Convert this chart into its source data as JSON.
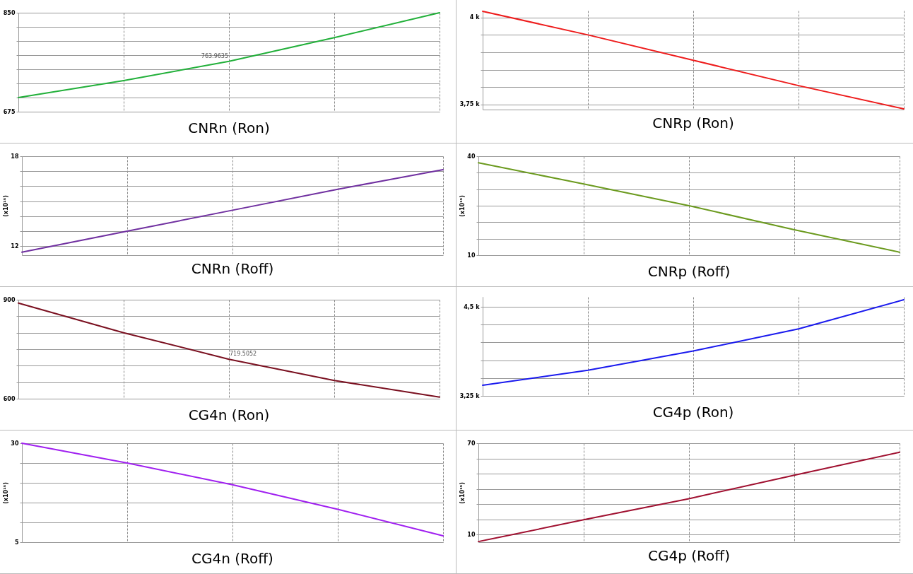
{
  "chart_data": [
    {
      "type": "line",
      "title": "CNRn (Ron)",
      "categories": [
        null,
        null,
        null,
        null,
        null
      ],
      "series": [
        {
          "color": "#22b03a",
          "values": [
            700,
            730,
            763.9635,
            806,
            850
          ]
        }
      ],
      "ylim": [
        675,
        850
      ],
      "yticks": [
        675,
        {
          "value": 700,
          "label": null
        },
        {
          "value": 725,
          "label": null
        },
        {
          "value": 750,
          "label": null
        },
        {
          "value": 775,
          "label": null
        },
        {
          "value": 800,
          "label": null
        },
        {
          "value": 825,
          "label": null
        },
        850
      ],
      "grid": true,
      "tick_labels": "y",
      "annotations": [
        {
          "text": "763.9635",
          "y": 763.9635
        }
      ]
    },
    {
      "type": "line",
      "title": "CNRp (Ron)",
      "categories": [
        null,
        null,
        null,
        null,
        null
      ],
      "series": [
        {
          "color": "#ee1c1c",
          "values": [
            4018,
            3950,
            3877,
            3804,
            3737
          ]
        }
      ],
      "ylim": [
        3735,
        4020
      ],
      "yticks": [
        {
          "value": 3750,
          "label": "3,75 k"
        },
        {
          "value": 3800,
          "label": null
        },
        {
          "value": 3850,
          "label": null
        },
        {
          "value": 3900,
          "label": null
        },
        {
          "value": 3950,
          "label": null
        },
        {
          "value": 4000,
          "label": "4 k"
        }
      ],
      "grid": true,
      "tick_labels": "y"
    },
    {
      "type": "line",
      "title": "CNRn (Roff)",
      "ylabel": "(x10¹⁵)",
      "categories": [
        null,
        null,
        null,
        null,
        null
      ],
      "series": [
        {
          "color": "#7030a0",
          "values": [
            11.6,
            13,
            14.4,
            15.8,
            17.1
          ]
        }
      ],
      "ylim": [
        11.4,
        18
      ],
      "yticks": [
        12,
        {
          "value": 13,
          "label": null
        },
        {
          "value": 14,
          "label": null
        },
        {
          "value": 15,
          "label": null
        },
        {
          "value": 16,
          "label": null
        },
        {
          "value": 17,
          "label": null
        },
        18
      ],
      "grid": true,
      "tick_labels": "y"
    },
    {
      "type": "line",
      "title": "CNRp (Roff)",
      "ylabel": "(x10¹⁵)",
      "categories": [
        null,
        null,
        null,
        null,
        null
      ],
      "series": [
        {
          "color": "#6b9a1e",
          "values": [
            38,
            31.6,
            25,
            17.7,
            10.9
          ]
        }
      ],
      "ylim": [
        10,
        40
      ],
      "yticks": [
        10,
        {
          "value": 15,
          "label": null
        },
        {
          "value": 20,
          "label": null
        },
        {
          "value": 25,
          "label": null
        },
        {
          "value": 30,
          "label": null
        },
        {
          "value": 35,
          "label": null
        },
        40
      ],
      "grid": true,
      "tick_labels": "y"
    },
    {
      "type": "line",
      "title": "CG4n (Ron)",
      "categories": [
        null,
        null,
        null,
        null,
        null
      ],
      "series": [
        {
          "color": "#7a1020",
          "values": [
            890,
            800,
            719.5052,
            655,
            605
          ]
        }
      ],
      "ylim": [
        600,
        900
      ],
      "yticks": [
        600,
        {
          "value": 650,
          "label": null
        },
        {
          "value": 700,
          "label": null
        },
        {
          "value": 750,
          "label": null
        },
        {
          "value": 800,
          "label": null
        },
        {
          "value": 850,
          "label": null
        },
        900
      ],
      "grid": true,
      "tick_labels": "y",
      "annotations": [
        {
          "text": "719.5052",
          "y": 719.5052
        }
      ]
    },
    {
      "type": "line",
      "title": "CG4p (Ron)",
      "categories": [
        null,
        null,
        null,
        null,
        null
      ],
      "series": [
        {
          "color": "#1a1aee",
          "values": [
            3400,
            3610,
            3880,
            4190,
            4600
          ]
        }
      ],
      "ylim": [
        3250,
        4640
      ],
      "yticks": [
        {
          "value": 3250,
          "label": "3,25 k"
        },
        {
          "value": 3500,
          "label": null
        },
        {
          "value": 3750,
          "label": null
        },
        {
          "value": 4000,
          "label": null
        },
        {
          "value": 4250,
          "label": null
        },
        {
          "value": 4500,
          "label": "4,5 k"
        }
      ],
      "grid": true,
      "tick_labels": "y"
    },
    {
      "type": "line",
      "title": "CG4n (Roff)",
      "ylabel": "(x10¹⁵)",
      "categories": [
        null,
        null,
        null,
        null,
        null
      ],
      "series": [
        {
          "color": "#a020f0",
          "values": [
            30,
            25,
            19.5,
            13.3,
            6.6
          ]
        }
      ],
      "ylim": [
        5,
        30
      ],
      "yticks": [
        5,
        {
          "value": 10,
          "label": null
        },
        {
          "value": 15,
          "label": null
        },
        {
          "value": 20,
          "label": null
        },
        {
          "value": 25,
          "label": null
        },
        30
      ],
      "grid": true,
      "tick_labels": "y"
    },
    {
      "type": "line",
      "title": "CG4p (Roff)",
      "ylabel": "(x10¹⁵)",
      "categories": [
        null,
        null,
        null,
        null,
        null
      ],
      "series": [
        {
          "color": "#a01030",
          "values": [
            5.4,
            19.7,
            33.6,
            49,
            64.1
          ]
        }
      ],
      "ylim": [
        5,
        70
      ],
      "yticks": [
        10,
        {
          "value": 20,
          "label": null
        },
        {
          "value": 30,
          "label": null
        },
        {
          "value": 40,
          "label": null
        },
        {
          "value": 50,
          "label": null
        },
        {
          "value": 60,
          "label": null
        },
        70
      ],
      "grid": true,
      "tick_labels": "y"
    }
  ]
}
